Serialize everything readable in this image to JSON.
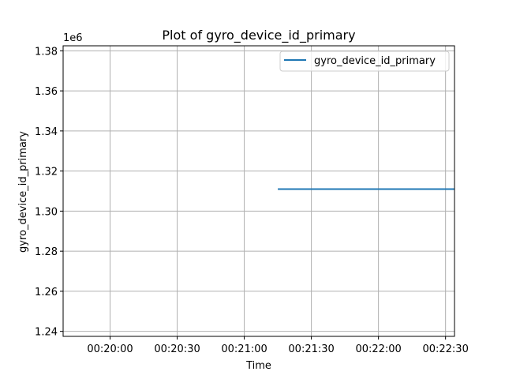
{
  "chart_data": {
    "type": "line",
    "title": "Plot of gyro_device_id_primary",
    "xlabel": "Time",
    "ylabel": "gyro_device_id_primary",
    "y_scale_label": "1e6",
    "x_tick_labels": [
      "00:20:00",
      "00:20:30",
      "00:21:00",
      "00:21:30",
      "00:22:00",
      "00:22:30"
    ],
    "x_ticks": [
      "00:20:00",
      "00:20:30",
      "00:21:00",
      "00:21:30",
      "00:22:00",
      "00:22:30"
    ],
    "xlim": [
      "00:19:39",
      "00:22:34"
    ],
    "y_ticks": [
      1.24,
      1.26,
      1.28,
      1.3,
      1.32,
      1.34,
      1.36,
      1.38
    ],
    "y_tick_labels": [
      "1.24",
      "1.26",
      "1.28",
      "1.30",
      "1.32",
      "1.34",
      "1.36",
      "1.38"
    ],
    "ylim": [
      1.2375,
      1.3825
    ],
    "grid": true,
    "legend_position": "top-right",
    "series": [
      {
        "name": "gyro_device_id_primary",
        "color": "#1f77b4",
        "x": [
          "00:21:15",
          "00:22:34"
        ],
        "y": [
          1.311,
          1.311
        ]
      }
    ]
  }
}
